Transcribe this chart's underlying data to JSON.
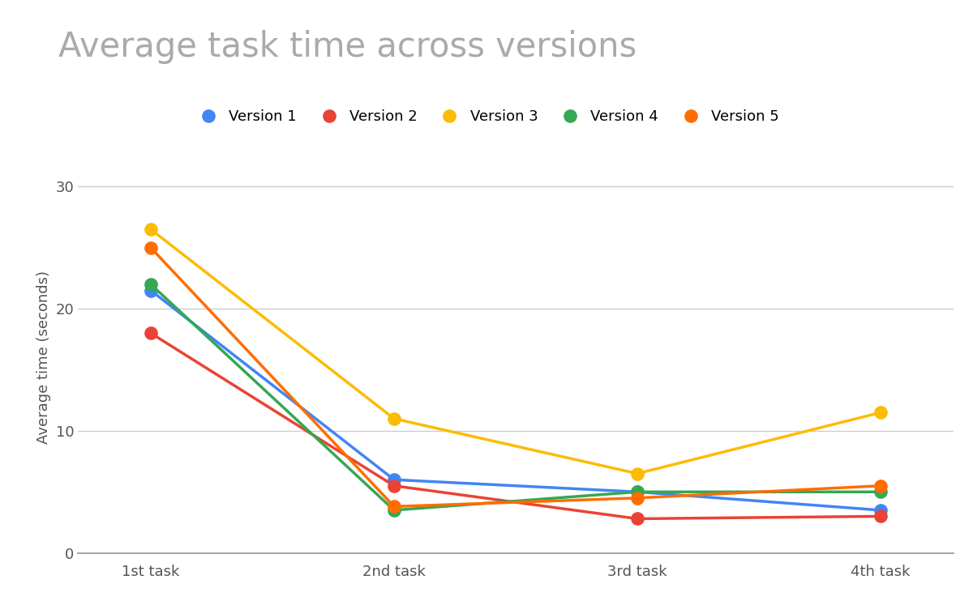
{
  "title": "Average task time across versions",
  "xlabel": "",
  "ylabel": "Average time (seconds)",
  "tasks": [
    "1st task",
    "2nd task",
    "3rd task",
    "4th task"
  ],
  "versions": [
    {
      "label": "Version 1",
      "color": "#4285F4",
      "values": [
        21.5,
        6.0,
        5.0,
        3.5
      ]
    },
    {
      "label": "Version 2",
      "color": "#EA4335",
      "values": [
        18.0,
        5.5,
        2.8,
        3.0
      ]
    },
    {
      "label": "Version 3",
      "color": "#FBBC04",
      "values": [
        26.5,
        11.0,
        6.5,
        11.5
      ]
    },
    {
      "label": "Version 4",
      "color": "#34A853",
      "values": [
        22.0,
        3.5,
        5.0,
        5.0
      ]
    },
    {
      "label": "Version 5",
      "color": "#FF6D00",
      "values": [
        25.0,
        3.8,
        4.5,
        5.5
      ]
    }
  ],
  "ylim": [
    0,
    32
  ],
  "yticks": [
    0,
    10,
    20,
    30
  ],
  "background_color": "#ffffff",
  "title_color": "#aaaaaa",
  "title_fontsize": 30,
  "label_fontsize": 13,
  "legend_fontsize": 13,
  "marker_size": 12,
  "line_width": 2.5,
  "grid_color": "#cccccc"
}
